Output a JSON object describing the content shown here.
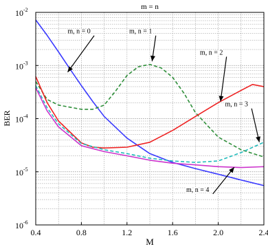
{
  "chart_data": {
    "type": "line",
    "title": "m = n",
    "xlabel": "M",
    "ylabel": "BER",
    "xlim": [
      0.4,
      2.4
    ],
    "ylim": [
      1e-06,
      0.01
    ],
    "yscale": "log",
    "grid": true,
    "x_ticks": [
      "0.4",
      "0.8",
      "1.2",
      "1.6",
      "2.0",
      "2.4"
    ],
    "y_ticks": [
      {
        "base": "10",
        "exp": "-6"
      },
      {
        "base": "10",
        "exp": "-5"
      },
      {
        "base": "10",
        "exp": "-4"
      },
      {
        "base": "10",
        "exp": "-3"
      },
      {
        "base": "10",
        "exp": "-2"
      }
    ],
    "series": [
      {
        "name": "m, n = 0",
        "color": "#3a3aff",
        "dash": "solid",
        "x": [
          0.4,
          0.5,
          0.6,
          0.7,
          0.8,
          0.9,
          1.0,
          1.2,
          1.4,
          1.6,
          1.8,
          2.0,
          2.2,
          2.4
        ],
        "y": [
          0.0072,
          0.0037,
          0.0018,
          0.00086,
          0.00042,
          0.00021,
          0.00011,
          4.3e-05,
          2.2e-05,
          1.5e-05,
          1.15e-05,
          9e-06,
          7e-06,
          5.5e-06
        ]
      },
      {
        "name": "m, n = 1",
        "color": "#2f8f3a",
        "dash": "dashed",
        "x": [
          0.4,
          0.5,
          0.6,
          0.8,
          0.9,
          1.0,
          1.1,
          1.2,
          1.3,
          1.4,
          1.5,
          1.6,
          1.7,
          1.8,
          2.0,
          2.2,
          2.4
        ],
        "y": [
          0.0005,
          0.00023,
          0.00018,
          0.00015,
          0.00015,
          0.00018,
          0.00033,
          0.00065,
          0.00095,
          0.00105,
          0.0009,
          0.0006,
          0.0003,
          0.00013,
          4.5e-05,
          2.6e-05,
          1.9e-05
        ]
      },
      {
        "name": "m, n = 2",
        "color": "#ee2222",
        "dash": "solid",
        "x": [
          0.4,
          0.5,
          0.6,
          0.8,
          0.9,
          1.0,
          1.2,
          1.4,
          1.6,
          1.8,
          2.0,
          2.2,
          2.3,
          2.4
        ],
        "y": [
          0.00062,
          0.0002,
          9e-05,
          3.5e-05,
          2.9e-05,
          2.8e-05,
          2.9e-05,
          3.6e-05,
          6e-05,
          0.00011,
          0.0002,
          0.00034,
          0.00044,
          0.0004
        ]
      },
      {
        "name": "m, n = 3",
        "color": "#22bbbb",
        "dash": "dashed",
        "x": [
          0.4,
          0.5,
          0.6,
          0.8,
          1.0,
          1.2,
          1.4,
          1.6,
          1.8,
          2.0,
          2.2,
          2.4
        ],
        "y": [
          0.00042,
          0.00016,
          8e-05,
          3.4e-05,
          2.6e-05,
          2.2e-05,
          1.8e-05,
          1.6e-05,
          1.5e-05,
          1.6e-05,
          2.3e-05,
          3.6e-05
        ]
      },
      {
        "name": "m, n = 4",
        "color": "#cc33cc",
        "dash": "solid",
        "x": [
          0.4,
          0.5,
          0.6,
          0.8,
          1.0,
          1.2,
          1.4,
          1.6,
          1.8,
          2.0,
          2.2,
          2.4
        ],
        "y": [
          0.00038,
          0.00014,
          7e-05,
          3.1e-05,
          2.4e-05,
          2e-05,
          1.65e-05,
          1.45e-05,
          1.35e-05,
          1.25e-05,
          1.2e-05,
          1.25e-05
        ]
      }
    ],
    "annotations": [
      {
        "text": "m, n = 0",
        "x": 0.78,
        "y": 0.004,
        "arrow_to": [
          0.68,
          0.00075
        ]
      },
      {
        "text": "m, n = 1",
        "x": 1.32,
        "y": 0.004,
        "arrow_to": [
          1.42,
          0.0012
        ]
      },
      {
        "text": "m, n = 2",
        "x": 1.94,
        "y": 0.0016,
        "arrow_to": [
          2.02,
          0.00021
        ]
      },
      {
        "text": "m, n = 3",
        "x": 2.16,
        "y": 0.00017,
        "arrow_to": [
          2.36,
          3.6e-05
        ]
      },
      {
        "text": "m, n = 4",
        "x": 1.82,
        "y": 4.2e-06,
        "arrow_to": [
          2.14,
          1.22e-05
        ]
      }
    ]
  }
}
